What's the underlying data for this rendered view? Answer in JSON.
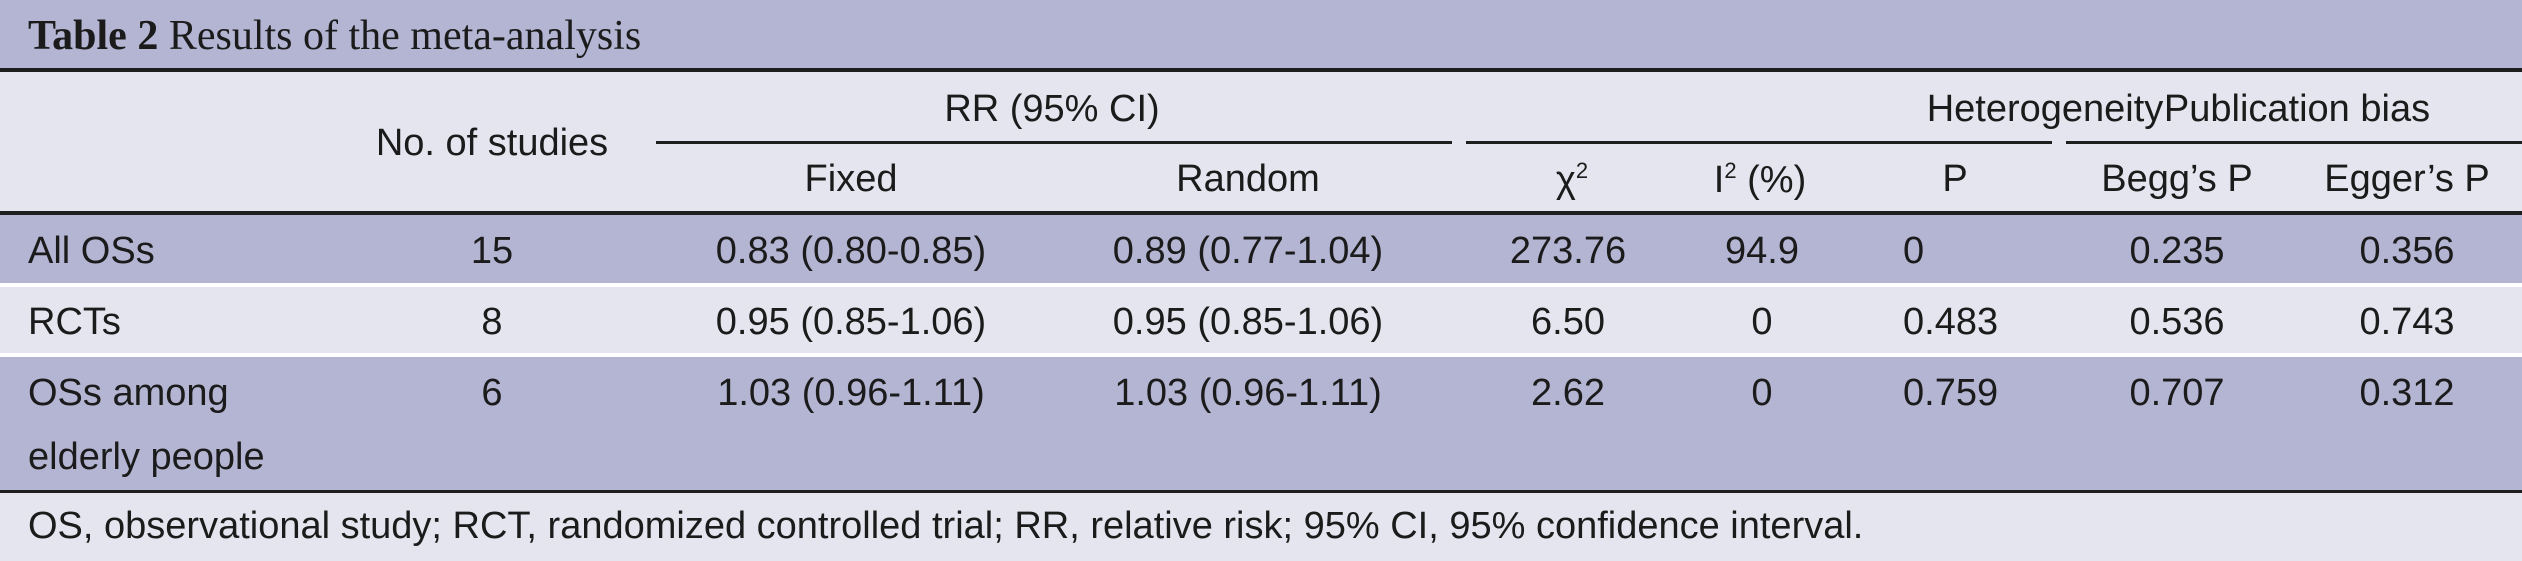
{
  "table": {
    "title_label": "Table 2",
    "title_text": "Results of the meta-analysis",
    "headers": {
      "no_studies": "No. of studies",
      "rr_group": "RR (95% CI)",
      "fixed": "Fixed",
      "random": "Random",
      "heterogeneity_group": "Heterogeneity",
      "chi2_base": "χ",
      "chi2_sup": "2",
      "i2_base": "I",
      "i2_sup": "2",
      "i2_suffix": " (%)",
      "p": "P",
      "pubbias_group": "Publication bias",
      "begg": "Begg’s P",
      "egger": "Egger’s P"
    },
    "rows": [
      {
        "label": "All OSs",
        "label2": "",
        "n": "15",
        "fixed": "0.83 (0.80-0.85)",
        "random": "0.89 (0.77-1.04)",
        "chi2": "273.76",
        "i2": "94.9",
        "p": "0",
        "begg": "0.235",
        "egger": "0.356"
      },
      {
        "label": "RCTs",
        "label2": "",
        "n": "8",
        "fixed": "0.95 (0.85-1.06)",
        "random": "0.95 (0.85-1.06)",
        "chi2": "6.50",
        "i2": "0",
        "p": "0.483",
        "begg": "0.536",
        "egger": "0.743"
      },
      {
        "label": "OSs among",
        "label2": "elderly people",
        "n": "6",
        "fixed": "1.03 (0.96-1.11)",
        "random": "1.03 (0.96-1.11)",
        "chi2": "2.62",
        "i2": "0",
        "p": "0.759",
        "begg": "0.707",
        "egger": "0.312"
      }
    ],
    "footnote": "OS, observational study; RCT, randomized controlled trial; RR, relative risk; 95% CI, 95% confidence interval."
  }
}
